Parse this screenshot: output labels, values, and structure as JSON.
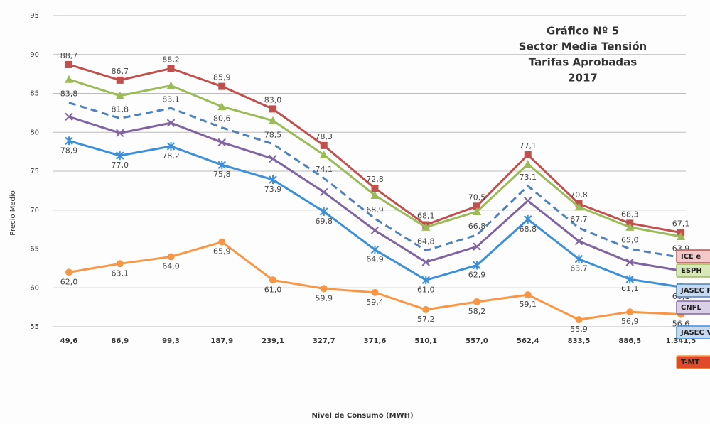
{
  "chart_data": {
    "type": "line",
    "title": [
      "Gráfico Nº 5",
      "Sector Media Tensión",
      "Tarifas Aprobadas",
      "2017"
    ],
    "x_label": "Nivel de Consumo (MWH)",
    "y_label": "Precio Medio",
    "categories": [
      "49,6",
      "86,9",
      "99,3",
      "187,9",
      "239,1",
      "327,7",
      "371,6",
      "510,1",
      "557,0",
      "562,4",
      "833,5",
      "886,5",
      "1.341,5"
    ],
    "ylim": [
      55,
      95
    ],
    "yticks": [
      55,
      60,
      65,
      70,
      75,
      80,
      85,
      90,
      95
    ],
    "grid": true,
    "series": [
      {
        "name": "ICE e",
        "color": "#c0504d",
        "marker": "square",
        "label_pos": "above",
        "values": [
          88.7,
          86.7,
          88.2,
          85.9,
          83.0,
          78.3,
          72.8,
          68.1,
          70.5,
          77.1,
          70.8,
          68.3,
          67.1
        ],
        "value_labels": [
          "88,7",
          "86,7",
          "88,2",
          "85,9",
          "83,0",
          "78,3",
          "72,8",
          "68,1",
          "70,5",
          "77,1",
          "70,8",
          "68,3",
          "67,1"
        ]
      },
      {
        "name": "ESPH",
        "color": "#9bbb59",
        "marker": "triangle",
        "values": [
          86.8,
          84.7,
          86.0,
          83.3,
          81.5,
          77.1,
          71.9,
          67.8,
          69.8,
          75.9,
          70.4,
          67.8,
          66.6
        ]
      },
      {
        "name": "JASEC Pro",
        "color": "#4f81bd",
        "marker": "none",
        "dashed": true,
        "label_pos": "above",
        "values": [
          83.8,
          81.8,
          83.1,
          80.6,
          78.5,
          74.1,
          68.9,
          64.8,
          66.8,
          73.1,
          67.7,
          65.0,
          63.9
        ],
        "value_labels": [
          "83,8",
          "81,8",
          "83,1",
          "80,6",
          "78,5",
          "74,1",
          "68,9",
          "64,8",
          "66,8",
          "73,1",
          "67,7",
          "65,0",
          "63,9"
        ]
      },
      {
        "name": "CNFL",
        "color": "#8064a2",
        "marker": "x",
        "values": [
          82.0,
          79.9,
          81.2,
          78.7,
          76.6,
          72.3,
          67.4,
          63.3,
          65.3,
          71.2,
          66.0,
          63.3,
          62.2
        ]
      },
      {
        "name": "JASEC Vi",
        "color": "#3c8fd8",
        "marker": "star",
        "label_pos": "below",
        "values": [
          78.9,
          77.0,
          78.2,
          75.8,
          73.9,
          69.8,
          64.9,
          61.0,
          62.9,
          68.8,
          63.7,
          61.1,
          60.1
        ],
        "value_labels": [
          "78,9",
          "77,0",
          "78,2",
          "75,8",
          "73,9",
          "69,8",
          "64,9",
          "61,0",
          "62,9",
          "68,8",
          "63,7",
          "61,1",
          "60,1"
        ]
      },
      {
        "name": "T-MT",
        "color": "#f79646",
        "marker": "circle",
        "label_pos": "below",
        "values": [
          62.0,
          63.1,
          64.0,
          65.9,
          61.0,
          59.9,
          59.4,
          57.2,
          58.2,
          59.1,
          55.9,
          56.9,
          56.6
        ],
        "value_labels": [
          "62,0",
          "63,1",
          "64,0",
          "65,9",
          "61,0",
          "59,9",
          "59,4",
          "57,2",
          "58,2",
          "59,1",
          "55,9",
          "56,9",
          "56,6"
        ]
      }
    ]
  }
}
